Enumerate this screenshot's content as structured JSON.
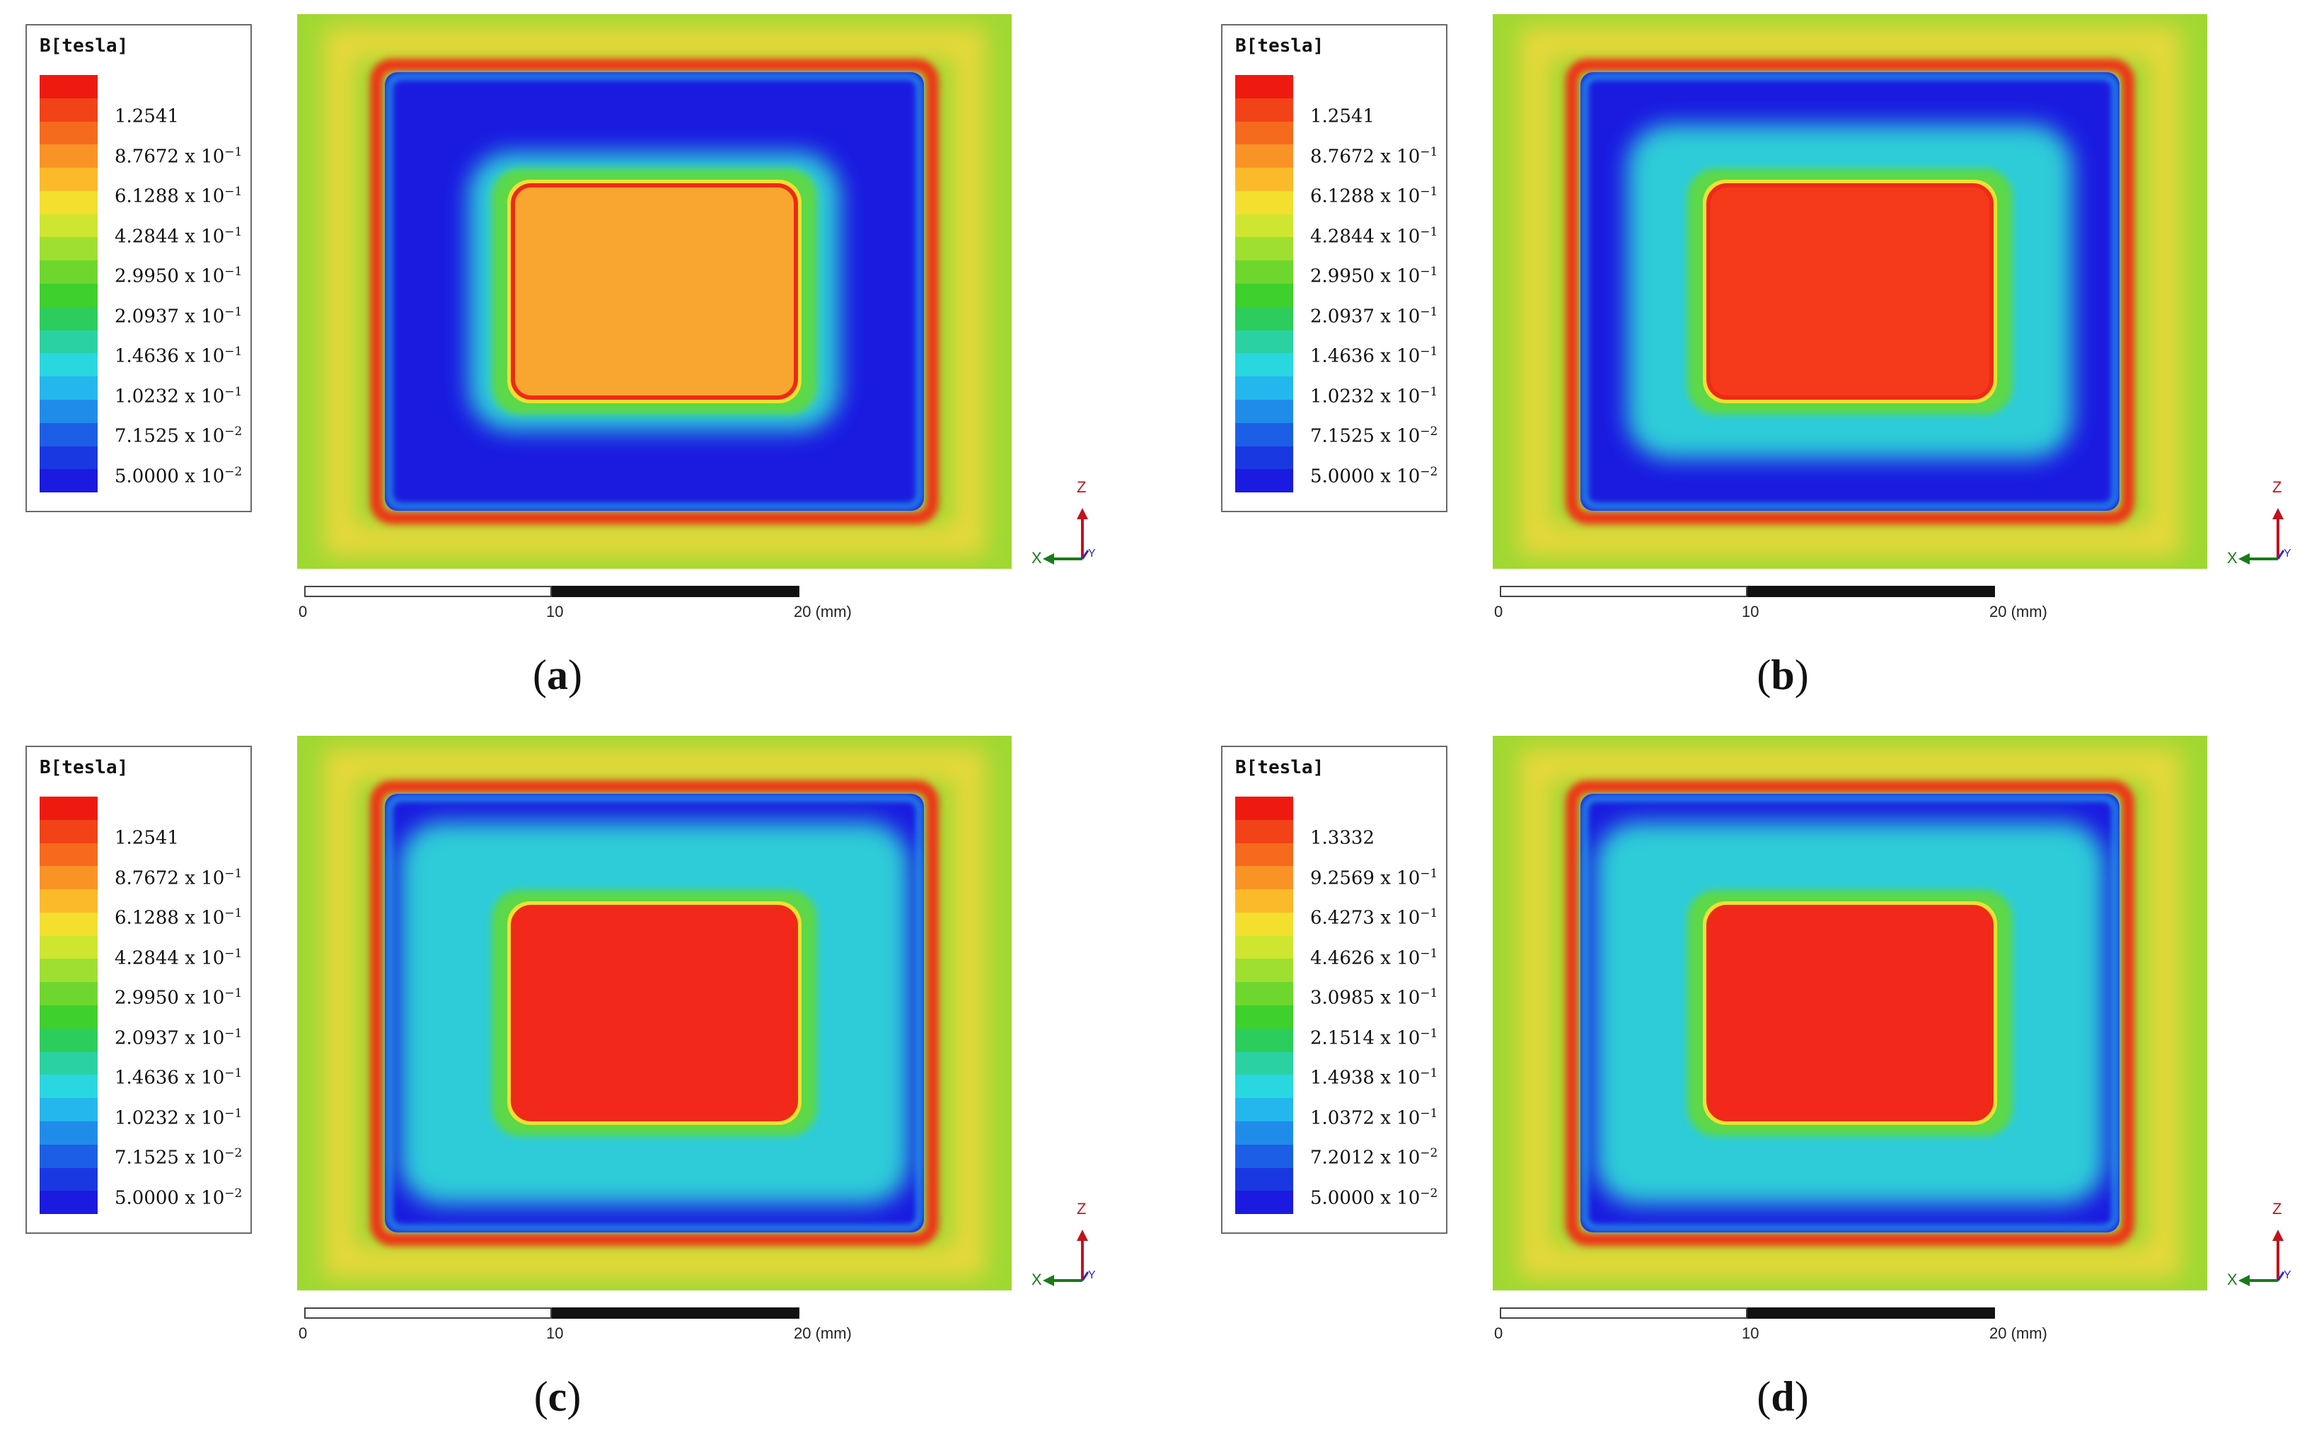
{
  "legend_title": "B[tesla]",
  "colormap": [
    "#ee1a10",
    "#f24218",
    "#f66a1e",
    "#f99326",
    "#fbba2a",
    "#f3df2e",
    "#cfe630",
    "#9fdf30",
    "#6ed72e",
    "#3ed02c",
    "#2ccd5c",
    "#2ad2a2",
    "#28d7e0",
    "#24b7ee",
    "#208cea",
    "#1c5fe6",
    "#1a38e2",
    "#1a1ae0"
  ],
  "axes": {
    "z_label": "Z",
    "x_label": "X",
    "y_label": "Y"
  },
  "scale": {
    "ticks": [
      "0",
      "10",
      "20 (mm)"
    ]
  },
  "panels": [
    {
      "id": "a",
      "caption_letter": "a",
      "legend_entries": [
        {
          "mantissa": "1.2541",
          "exp": ""
        },
        {
          "mantissa": "8.7672 x 10",
          "exp": "−1"
        },
        {
          "mantissa": "6.1288 x 10",
          "exp": "−1"
        },
        {
          "mantissa": "4.2844 x 10",
          "exp": "−1"
        },
        {
          "mantissa": "2.9950 x 10",
          "exp": "−1"
        },
        {
          "mantissa": "2.0937 x 10",
          "exp": "−1"
        },
        {
          "mantissa": "1.4636 x 10",
          "exp": "−1"
        },
        {
          "mantissa": "1.0232 x 10",
          "exp": "−1"
        },
        {
          "mantissa": "7.1525 x 10",
          "exp": "−2"
        },
        {
          "mantissa": "5.0000 x 10",
          "exp": "−2"
        }
      ],
      "core_color": "#f8a630",
      "halo_level": 0.15
    },
    {
      "id": "b",
      "caption_letter": "b",
      "legend_entries": [
        {
          "mantissa": "1.2541",
          "exp": ""
        },
        {
          "mantissa": "8.7672 x 10",
          "exp": "−1"
        },
        {
          "mantissa": "6.1288 x 10",
          "exp": "−1"
        },
        {
          "mantissa": "4.2844 x 10",
          "exp": "−1"
        },
        {
          "mantissa": "2.9950 x 10",
          "exp": "−1"
        },
        {
          "mantissa": "2.0937 x 10",
          "exp": "−1"
        },
        {
          "mantissa": "1.4636 x 10",
          "exp": "−1"
        },
        {
          "mantissa": "1.0232 x 10",
          "exp": "−1"
        },
        {
          "mantissa": "7.1525 x 10",
          "exp": "−2"
        },
        {
          "mantissa": "5.0000 x 10",
          "exp": "−2"
        }
      ],
      "core_color": "#f53a1c",
      "halo_level": 0.5
    },
    {
      "id": "c",
      "caption_letter": "c",
      "legend_entries": [
        {
          "mantissa": "1.2541",
          "exp": ""
        },
        {
          "mantissa": "8.7672 x 10",
          "exp": "−1"
        },
        {
          "mantissa": "6.1288 x 10",
          "exp": "−1"
        },
        {
          "mantissa": "4.2844 x 10",
          "exp": "−1"
        },
        {
          "mantissa": "2.9950 x 10",
          "exp": "−1"
        },
        {
          "mantissa": "2.0937 x 10",
          "exp": "−1"
        },
        {
          "mantissa": "1.4636 x 10",
          "exp": "−1"
        },
        {
          "mantissa": "1.0232 x 10",
          "exp": "−1"
        },
        {
          "mantissa": "7.1525 x 10",
          "exp": "−2"
        },
        {
          "mantissa": "5.0000 x 10",
          "exp": "−2"
        }
      ],
      "core_color": "#f1281a",
      "halo_level": 0.8
    },
    {
      "id": "d",
      "caption_letter": "d",
      "legend_entries": [
        {
          "mantissa": "1.3332",
          "exp": ""
        },
        {
          "mantissa": "9.2569 x 10",
          "exp": "−1"
        },
        {
          "mantissa": "6.4273 x 10",
          "exp": "−1"
        },
        {
          "mantissa": "4.4626 x 10",
          "exp": "−1"
        },
        {
          "mantissa": "3.0985 x 10",
          "exp": "−1"
        },
        {
          "mantissa": "2.1514 x 10",
          "exp": "−1"
        },
        {
          "mantissa": "1.4938 x 10",
          "exp": "−1"
        },
        {
          "mantissa": "1.0372 x 10",
          "exp": "−1"
        },
        {
          "mantissa": "7.2012 x 10",
          "exp": "−2"
        },
        {
          "mantissa": "5.0000 x 10",
          "exp": "−2"
        }
      ],
      "core_color": "#f1281a",
      "halo_level": 0.8
    }
  ]
}
